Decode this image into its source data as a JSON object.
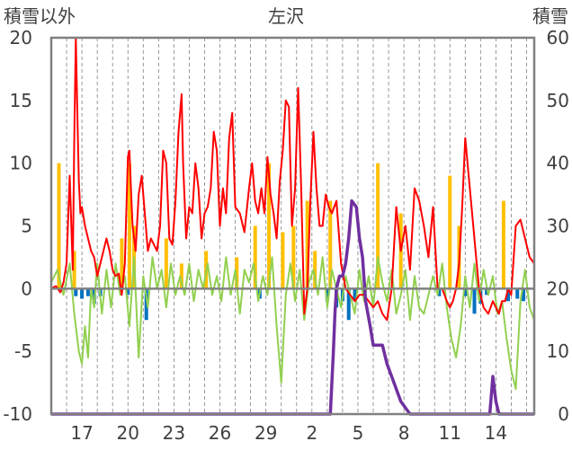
{
  "chart_data": {
    "type": "line",
    "title": "左沢",
    "y_left_label": "積雪以外",
    "y_right_label": "積雪",
    "y_left_range": [
      -10,
      20
    ],
    "y_right_range": [
      0,
      60
    ],
    "y_left_ticks": [
      "20",
      "15",
      "10",
      "5",
      "0",
      "-5",
      "-10"
    ],
    "y_right_ticks": [
      "60",
      "50",
      "40",
      "30",
      "20",
      "10",
      "0"
    ],
    "x_range": [
      0,
      31.5
    ],
    "x_tick_labels": [
      {
        "x": 2,
        "label": "17"
      },
      {
        "x": 5,
        "label": "20"
      },
      {
        "x": 8,
        "label": "23"
      },
      {
        "x": 11,
        "label": "26"
      },
      {
        "x": 14,
        "label": "29"
      },
      {
        "x": 17,
        "label": "2"
      },
      {
        "x": 20,
        "label": "5"
      },
      {
        "x": 23,
        "label": "8"
      },
      {
        "x": 26,
        "label": "11"
      },
      {
        "x": 29,
        "label": "14"
      }
    ],
    "colors": {
      "temperature": "#ff0000",
      "precipitation": "#ffc000",
      "sunshine": "#92d050",
      "negative_bar": "#0070c0",
      "snow_depth": "#7030a0",
      "grid": "#808080",
      "frame": "#808080"
    },
    "series": [
      {
        "key": "temperature",
        "axis": "left",
        "x": [
          0,
          0.3,
          0.6,
          0.8,
          1.0,
          1.2,
          1.4,
          1.5,
          1.6,
          1.7,
          1.8,
          1.9,
          2.0,
          2.2,
          2.4,
          2.6,
          2.8,
          3.0,
          3.3,
          3.6,
          3.8,
          4.0,
          4.2,
          4.4,
          4.6,
          4.8,
          5.0,
          5.1,
          5.2,
          5.3,
          5.5,
          5.7,
          5.9,
          6.1,
          6.3,
          6.5,
          6.7,
          6.9,
          7.1,
          7.3,
          7.5,
          7.7,
          7.9,
          8.1,
          8.3,
          8.5,
          8.6,
          8.8,
          9.0,
          9.2,
          9.4,
          9.6,
          9.8,
          10.0,
          10.2,
          10.4,
          10.6,
          10.8,
          11.0,
          11.2,
          11.4,
          11.6,
          11.8,
          12.0,
          12.3,
          12.6,
          12.9,
          13.1,
          13.3,
          13.5,
          13.7,
          13.9,
          14.1,
          14.3,
          14.5,
          14.7,
          14.9,
          15.1,
          15.3,
          15.5,
          15.7,
          15.9,
          16.1,
          16.3,
          16.5,
          16.7,
          16.9,
          17.1,
          17.3,
          17.5,
          17.7,
          17.9,
          18.1,
          18.3,
          18.6,
          18.9,
          19.2,
          19.5,
          19.8,
          20.1,
          20.4,
          20.7,
          21.0,
          21.3,
          21.6,
          21.9,
          22.2,
          22.5,
          22.8,
          23.1,
          23.4,
          23.7,
          24.0,
          24.3,
          24.6,
          24.9,
          25.2,
          25.5,
          25.8,
          26.0,
          26.2,
          26.4,
          26.6,
          26.8,
          27.0,
          27.3,
          27.6,
          27.9,
          28.2,
          28.5,
          28.8,
          29.0,
          29.2,
          29.4,
          29.6,
          29.8,
          30.0,
          30.3,
          30.6,
          30.9,
          31.2,
          31.5
        ],
        "y": [
          0,
          0.2,
          -0.3,
          0.5,
          2.0,
          9.0,
          1.5,
          12.0,
          20.0,
          14.0,
          8.5,
          6.0,
          6.5,
          5.0,
          4.0,
          3.0,
          2.5,
          1.0,
          2.5,
          4.0,
          3.0,
          1.5,
          1.0,
          1.2,
          -0.5,
          2.0,
          10.5,
          11.0,
          8.0,
          5.0,
          3.0,
          7.5,
          9.0,
          6.0,
          3.0,
          4.0,
          3.5,
          3.0,
          5.0,
          11.0,
          10.0,
          4.0,
          3.5,
          7.0,
          12.5,
          15.5,
          10.0,
          4.0,
          6.5,
          6.0,
          10.0,
          8.0,
          4.0,
          6.0,
          6.5,
          8.0,
          12.5,
          11.0,
          5.0,
          8.0,
          6.0,
          12.0,
          14.0,
          6.5,
          6.0,
          4.5,
          8.0,
          10.0,
          7.0,
          6.0,
          8.0,
          6.0,
          10.5,
          7.5,
          6.0,
          4.0,
          8.5,
          11.0,
          15.0,
          14.5,
          5.0,
          8.0,
          16.0,
          8.0,
          -2.0,
          0.0,
          7.0,
          12.5,
          8.0,
          5.0,
          5.0,
          7.5,
          6.5,
          6.0,
          7.0,
          2.0,
          0.0,
          -0.5,
          -1.0,
          -0.5,
          -0.5,
          -1.0,
          -1.5,
          -1.0,
          -2.0,
          -2.5,
          0.0,
          6.5,
          3.0,
          5.0,
          1.5,
          8.0,
          7.0,
          5.0,
          2.5,
          6.5,
          0.0,
          0.0,
          -1.0,
          -1.5,
          -1.0,
          0.0,
          2.0,
          6.5,
          12.0,
          8.0,
          4.0,
          0.0,
          -1.5,
          -2.0,
          -1.0,
          -1.5,
          -2.0,
          -1.0,
          -1.0,
          0.0,
          -0.5,
          5.0,
          5.5,
          4.0,
          2.5,
          2.0
        ]
      },
      {
        "key": "sunshine",
        "axis": "left",
        "x": [
          0,
          0.4,
          0.8,
          1.2,
          1.5,
          1.8,
          2.0,
          2.2,
          2.4,
          2.6,
          2.8,
          3.0,
          3.3,
          3.6,
          3.9,
          4.2,
          4.5,
          4.8,
          5.1,
          5.4,
          5.7,
          6.0,
          6.3,
          6.6,
          6.9,
          7.2,
          7.5,
          7.8,
          8.1,
          8.4,
          8.7,
          9.0,
          9.3,
          9.6,
          9.9,
          10.2,
          10.5,
          10.8,
          11.1,
          11.4,
          11.7,
          12.0,
          12.3,
          12.6,
          12.9,
          13.2,
          13.5,
          13.8,
          14.1,
          14.4,
          14.7,
          15.0,
          15.3,
          15.6,
          15.9,
          16.2,
          16.5,
          16.8,
          17.1,
          17.4,
          17.7,
          18.0,
          18.3,
          18.6,
          18.9,
          19.2,
          19.5,
          19.8,
          20.1,
          20.4,
          20.7,
          21.0,
          21.3,
          21.6,
          21.9,
          22.2,
          22.5,
          22.8,
          23.1,
          23.4,
          23.7,
          24.0,
          24.3,
          24.6,
          24.9,
          25.2,
          25.5,
          25.8,
          26.1,
          26.4,
          26.7,
          27.0,
          27.3,
          27.6,
          27.9,
          28.2,
          28.5,
          28.8,
          29.1,
          29.4,
          29.7,
          30.0,
          30.3,
          30.6,
          30.9,
          31.2,
          31.5
        ],
        "y": [
          0.5,
          1.5,
          -0.5,
          2.0,
          -2.0,
          -5.0,
          -6.0,
          -3.0,
          -5.5,
          0.0,
          -1.5,
          2.0,
          -2.0,
          1.5,
          -1.5,
          2.0,
          -0.5,
          1.0,
          -3.0,
          2.5,
          -5.5,
          1.0,
          -1.5,
          2.5,
          0.0,
          1.5,
          -1.5,
          2.0,
          -0.5,
          1.0,
          -0.5,
          2.0,
          -1.0,
          1.5,
          0.0,
          2.0,
          -0.5,
          1.0,
          -1.0,
          2.5,
          -0.5,
          1.5,
          -2.0,
          1.5,
          0.5,
          2.0,
          -1.0,
          1.0,
          -0.5,
          2.5,
          -3.0,
          -7.5,
          -0.5,
          2.0,
          -1.0,
          1.5,
          -2.5,
          0.5,
          1.5,
          -0.5,
          2.5,
          -1.5,
          1.5,
          0.0,
          -1.5,
          1.0,
          -0.5,
          -2.0,
          1.5,
          -1.0,
          1.0,
          -1.5,
          2.5,
          0.5,
          -1.0,
          1.5,
          -2.0,
          -0.5,
          1.5,
          -2.5,
          1.0,
          -1.5,
          -2.0,
          -0.5,
          1.0,
          -0.5,
          2.0,
          -1.5,
          -4.0,
          -5.5,
          -3.0,
          1.0,
          -1.5,
          2.0,
          -1.0,
          1.5,
          -0.5,
          1.0,
          -2.0,
          -1.0,
          -4.0,
          -6.5,
          -8.0,
          -1.0,
          1.5,
          -1.5,
          -2.5
        ]
      },
      {
        "key": "snow_depth",
        "axis": "right",
        "x": [
          0,
          18.2,
          18.4,
          18.5,
          18.6,
          18.8,
          19.0,
          19.2,
          19.4,
          19.6,
          19.9,
          20.1,
          20.3,
          20.5,
          20.8,
          21.0,
          21.3,
          21.6,
          21.9,
          22.2,
          22.5,
          22.8,
          23.1,
          23.4,
          23.7,
          24.0,
          24.5,
          27.5,
          28.6,
          28.8,
          29.0,
          29.2,
          31.5
        ],
        "y": [
          0,
          0,
          10,
          16,
          20,
          22,
          22,
          24,
          28,
          34,
          33,
          28,
          25,
          18,
          14,
          11,
          11,
          11,
          8,
          6,
          4,
          2,
          1,
          0,
          0,
          0,
          0,
          0,
          0,
          6,
          2,
          0,
          0
        ]
      },
      {
        "key": "precipitation",
        "axis": "left",
        "bars": [
          {
            "x": 0.5,
            "y": 10
          },
          {
            "x": 1.5,
            "y": 3
          },
          {
            "x": 4.6,
            "y": 4
          },
          {
            "x": 5.1,
            "y": 10
          },
          {
            "x": 5.4,
            "y": 5
          },
          {
            "x": 7.5,
            "y": 4
          },
          {
            "x": 8.5,
            "y": 2
          },
          {
            "x": 10.1,
            "y": 3
          },
          {
            "x": 12.1,
            "y": 2.5
          },
          {
            "x": 13.3,
            "y": 5
          },
          {
            "x": 14.2,
            "y": 10
          },
          {
            "x": 15.1,
            "y": 4.5
          },
          {
            "x": 15.8,
            "y": 5
          },
          {
            "x": 16.7,
            "y": 7
          },
          {
            "x": 17.2,
            "y": 3
          },
          {
            "x": 18.2,
            "y": 7
          },
          {
            "x": 21.3,
            "y": 10
          },
          {
            "x": 22.8,
            "y": 6
          },
          {
            "x": 26.0,
            "y": 9
          },
          {
            "x": 26.6,
            "y": 5
          },
          {
            "x": 29.5,
            "y": 7
          }
        ]
      },
      {
        "key": "negative_bar",
        "axis": "left",
        "bars": [
          {
            "x": 1.6,
            "y": -0.6
          },
          {
            "x": 2.0,
            "y": -0.8
          },
          {
            "x": 2.4,
            "y": -0.6
          },
          {
            "x": 2.8,
            "y": -1.2
          },
          {
            "x": 3.2,
            "y": -0.6
          },
          {
            "x": 5.0,
            "y": -0.5
          },
          {
            "x": 6.2,
            "y": -2.5
          },
          {
            "x": 13.6,
            "y": -0.8
          },
          {
            "x": 18.0,
            "y": -1.0
          },
          {
            "x": 18.6,
            "y": -1.5
          },
          {
            "x": 19.0,
            "y": -1.0
          },
          {
            "x": 19.4,
            "y": -2.5
          },
          {
            "x": 19.8,
            "y": -1.0
          },
          {
            "x": 25.3,
            "y": -0.6
          },
          {
            "x": 27.0,
            "y": -0.6
          },
          {
            "x": 27.6,
            "y": -2.0
          },
          {
            "x": 28.0,
            "y": -1.2
          },
          {
            "x": 28.4,
            "y": -0.5
          },
          {
            "x": 29.8,
            "y": -1.0
          },
          {
            "x": 30.4,
            "y": -0.8
          },
          {
            "x": 30.8,
            "y": -1.0
          }
        ]
      }
    ]
  }
}
